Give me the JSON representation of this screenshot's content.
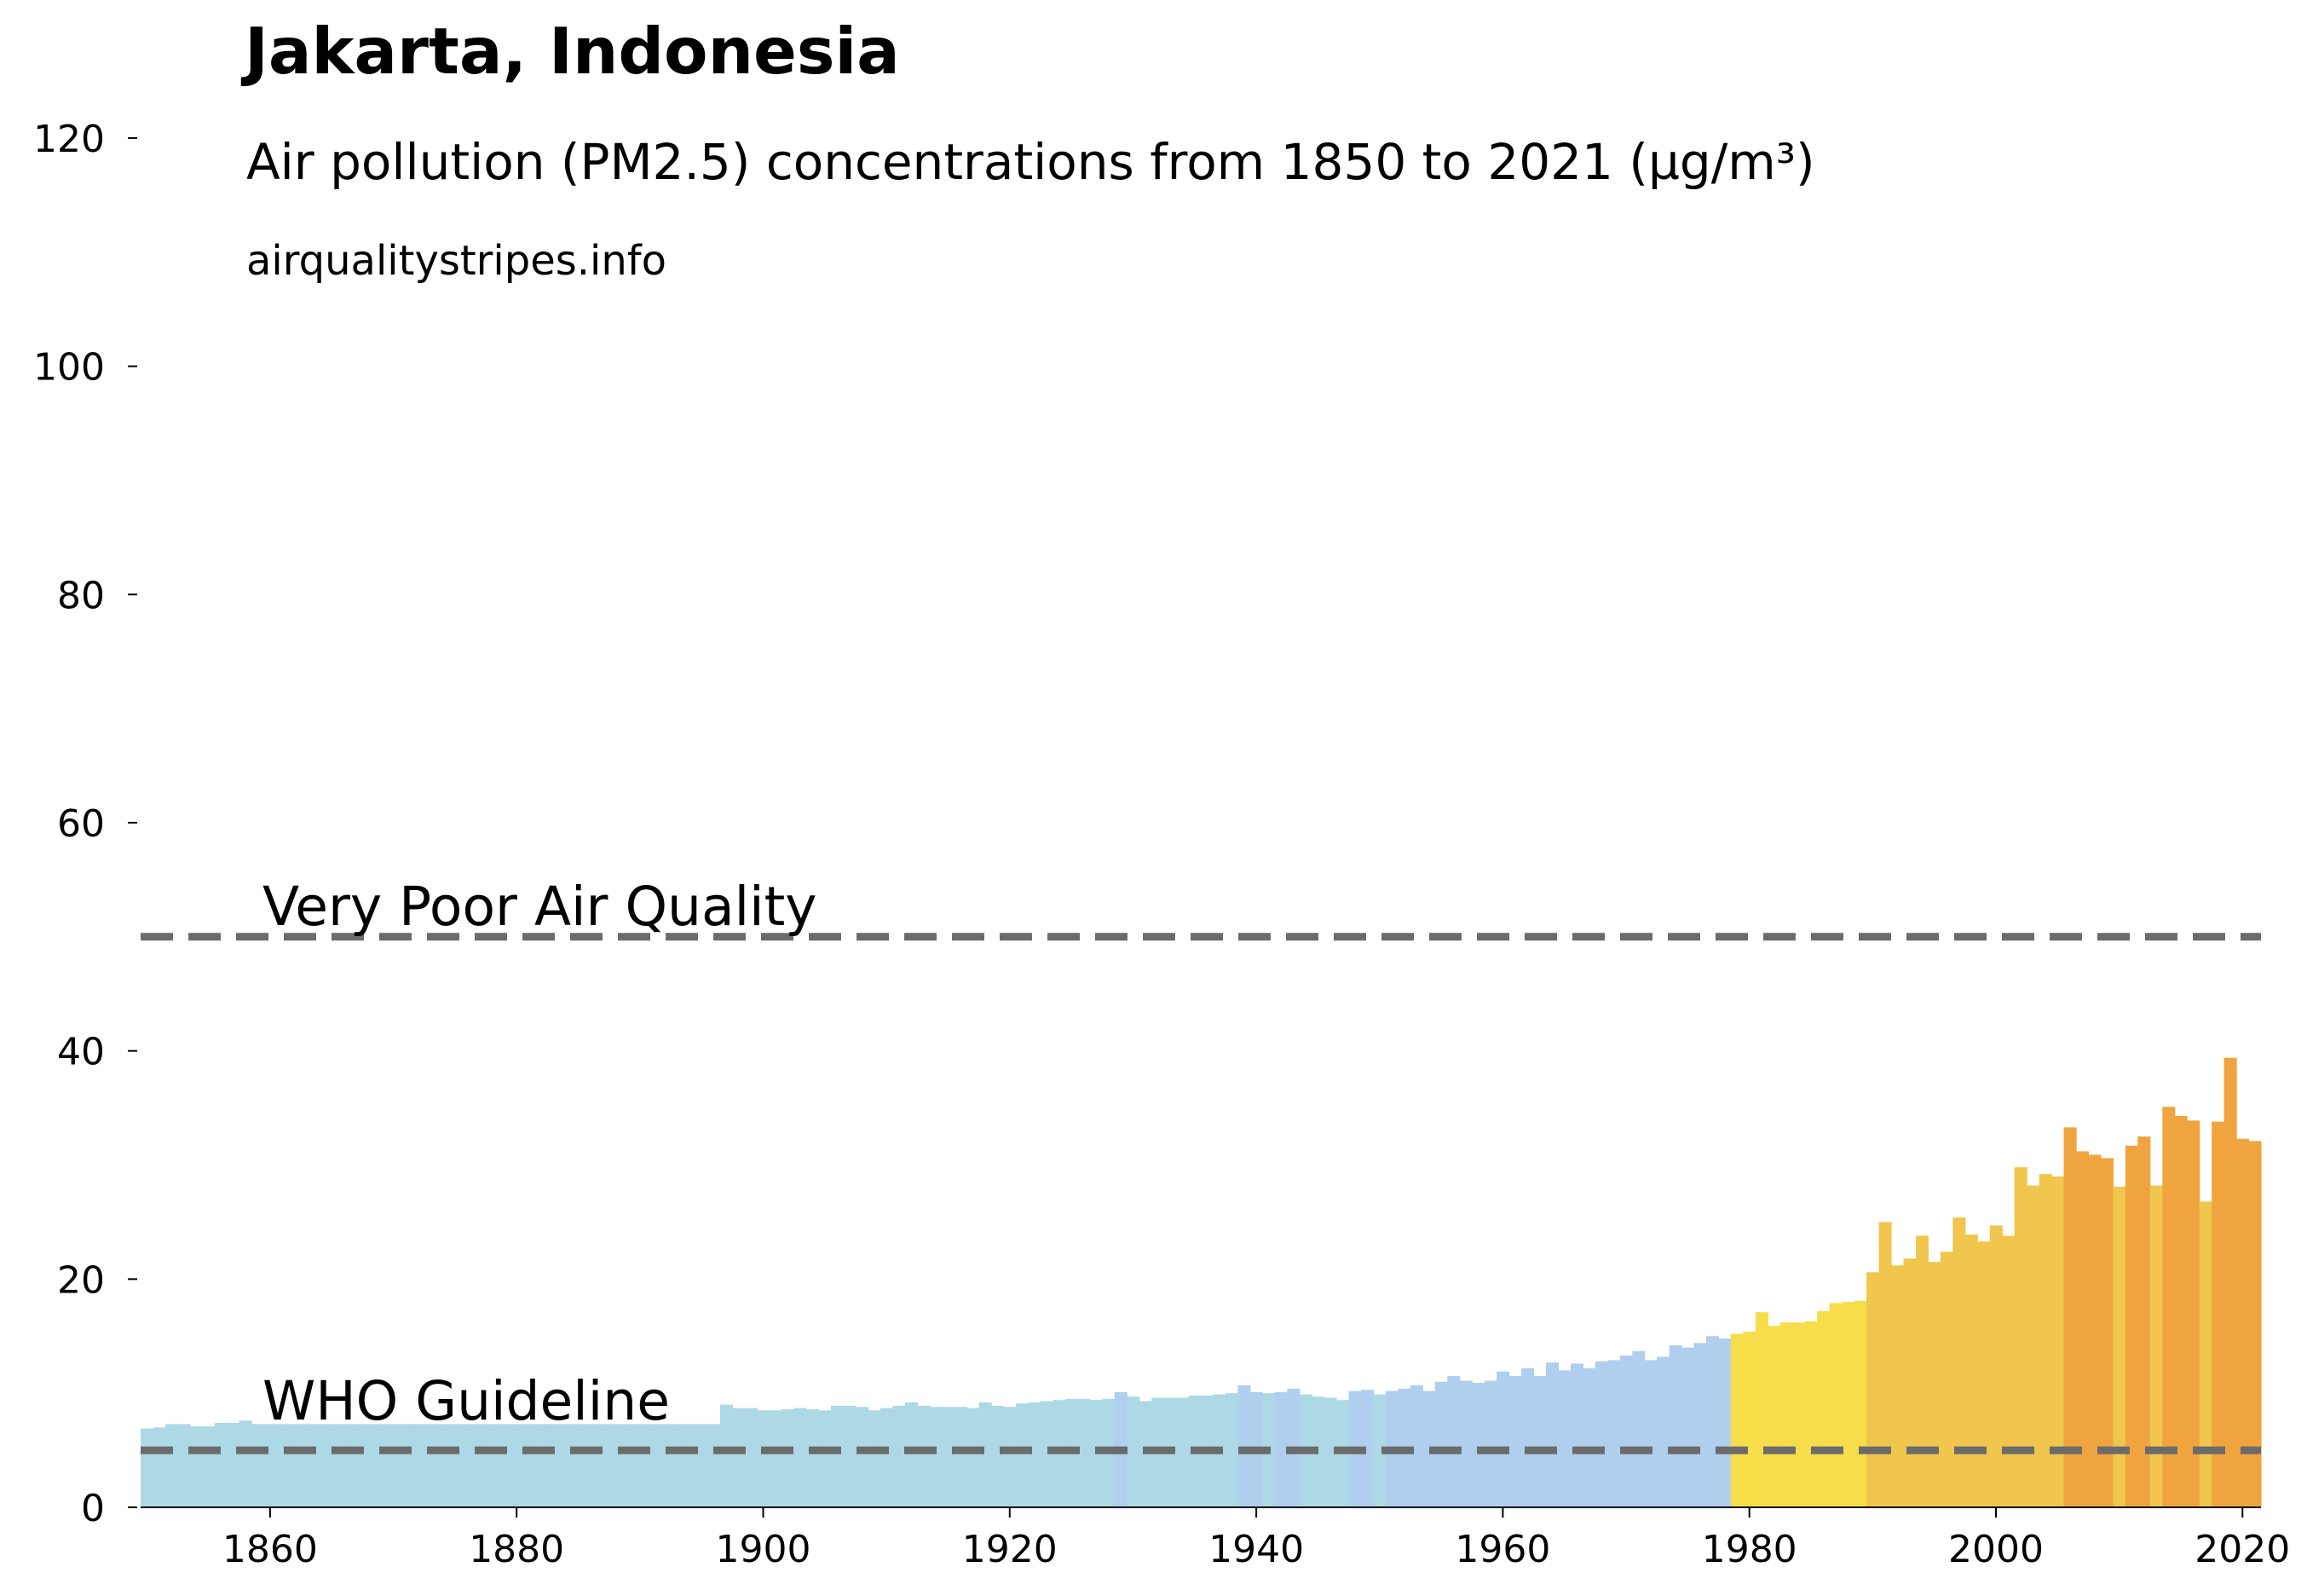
{
  "chart_data": {
    "type": "bar",
    "title": "Jakarta, Indonesia",
    "subtitle": "Air pollution (PM2.5) concentrations from 1850 to 2021 (µg/m³)",
    "source": "airqualitystripes.info",
    "xlabel": "",
    "ylabel": "",
    "xlim": [
      1849.5,
      2021.5
    ],
    "ylim": [
      0,
      125
    ],
    "x_ticks": [
      1860,
      1880,
      1900,
      1920,
      1940,
      1960,
      1980,
      2000,
      2020
    ],
    "y_ticks": [
      0,
      20,
      40,
      60,
      80,
      100,
      120
    ],
    "grid": false,
    "reference_lines": [
      {
        "label": "Very Poor Air Quality",
        "value": 50,
        "style": "dashed",
        "color": "#6b6b6b"
      },
      {
        "label": "WHO Guideline",
        "value": 5,
        "style": "dashed",
        "color": "#6b6b6b"
      }
    ],
    "color_bands": [
      {
        "max": 10,
        "color": "#add8e6"
      },
      {
        "max": 15,
        "color": "#b0cfee"
      },
      {
        "max": 20,
        "color": "#f6dd49"
      },
      {
        "max": 30,
        "color": "#f0c64d"
      },
      {
        "max": 999,
        "color": "#f0a43f"
      }
    ],
    "years_start": 1850,
    "values": [
      6.9,
      7.0,
      7.3,
      7.3,
      7.1,
      7.1,
      7.4,
      7.4,
      7.6,
      7.3,
      7.3,
      7.3,
      7.3,
      7.3,
      7.3,
      7.3,
      7.3,
      7.3,
      7.3,
      7.3,
      7.3,
      7.3,
      7.3,
      7.3,
      7.3,
      7.3,
      7.3,
      7.3,
      7.3,
      7.3,
      7.3,
      7.3,
      7.3,
      7.3,
      7.3,
      7.3,
      7.3,
      7.3,
      7.3,
      7.3,
      7.3,
      7.3,
      7.3,
      7.3,
      7.3,
      7.3,
      7.3,
      9.0,
      8.7,
      8.7,
      8.5,
      8.5,
      8.6,
      8.7,
      8.6,
      8.5,
      8.9,
      8.9,
      8.8,
      8.5,
      8.7,
      8.9,
      9.2,
      8.9,
      8.8,
      8.8,
      8.8,
      8.7,
      9.2,
      8.9,
      8.8,
      9.1,
      9.2,
      9.3,
      9.4,
      9.5,
      9.5,
      9.4,
      9.5,
      10.1,
      9.7,
      9.3,
      9.6,
      9.6,
      9.6,
      9.8,
      9.8,
      9.9,
      10.0,
      10.7,
      10.1,
      10.0,
      10.1,
      10.4,
      9.9,
      9.7,
      9.6,
      9.4,
      10.2,
      10.3,
      9.9,
      10.2,
      10.4,
      10.7,
      10.2,
      11.0,
      11.5,
      11.1,
      10.9,
      11.1,
      11.9,
      11.5,
      12.2,
      11.5,
      12.7,
      12.0,
      12.6,
      12.2,
      12.8,
      12.9,
      13.3,
      13.7,
      12.9,
      13.2,
      14.2,
      14.0,
      14.4,
      15.0,
      14.8,
      15.2,
      15.4,
      17.1,
      15.9,
      16.2,
      16.2,
      16.3,
      17.2,
      17.9,
      18.0,
      18.1,
      20.6,
      25.0,
      21.2,
      21.8,
      23.8,
      21.5,
      22.4,
      25.4,
      23.9,
      23.3,
      24.7,
      23.8,
      29.8,
      28.2,
      29.2,
      29.0,
      33.3,
      31.2,
      30.9,
      30.6,
      28.1,
      31.7,
      32.5,
      28.2,
      35.1,
      34.3,
      33.9,
      26.8,
      33.8,
      39.4,
      32.3,
      32.1
    ]
  }
}
